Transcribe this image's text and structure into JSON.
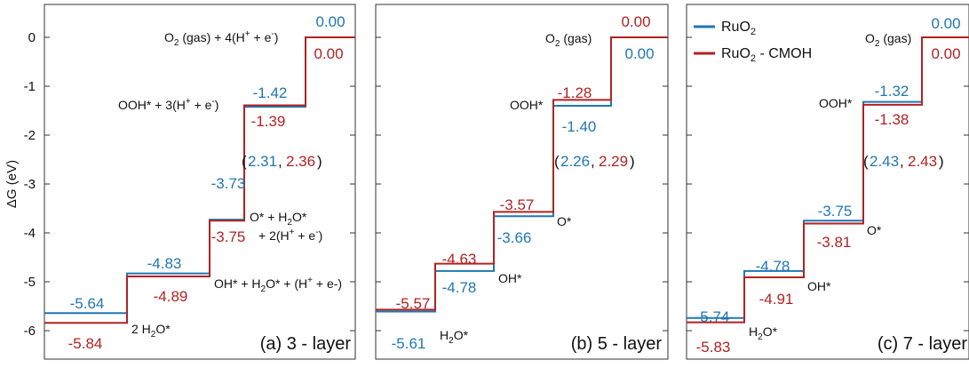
{
  "colors": {
    "ruo2": "#1f77b4",
    "cmoh": "#b22222",
    "axis": "#333333",
    "text": "#111111"
  },
  "chart_data": {
    "type": "line",
    "ylabel": "ΔG (eV)",
    "ylim": [
      -6.2,
      0.3
    ],
    "yticks": [
      "0",
      "-1",
      "-2",
      "-3",
      "-4",
      "-5",
      "-6"
    ],
    "legend": {
      "position": "top-left of panel (c)",
      "entries": [
        "RuO2",
        "RuO2 - CMOH"
      ]
    },
    "panels": [
      {
        "title": "(a) 3 - layer",
        "series": [
          {
            "name": "RuO2",
            "values": [
              -5.64,
              -4.83,
              -3.73,
              -1.42,
              0.0
            ]
          },
          {
            "name": "RuO2 - CMOH",
            "values": [
              -5.84,
              -4.89,
              -3.75,
              -1.39,
              0.0
            ]
          }
        ],
        "blue_labels": [
          "-5.64",
          "-4.83",
          "-3.73",
          "-1.42",
          "0.00"
        ],
        "red_labels": [
          "-5.84",
          "-4.89",
          "-3.75",
          "-1.39",
          "0.00"
        ],
        "species": [
          "2 H2O*",
          "OH* + H2O* + (H⁺ + e-)",
          "O* + H2O* + 2(H⁺ + e⁻)",
          "OOH* + 3(H⁺ + e⁻)",
          "O2 (gas) + 4(H⁺ + e⁻)"
        ],
        "overpotential": [
          "2.31",
          "2.36"
        ]
      },
      {
        "title": "(b) 5 - layer",
        "series": [
          {
            "name": "RuO2",
            "values": [
              -5.61,
              -4.78,
              -3.66,
              -1.4,
              0.0
            ]
          },
          {
            "name": "RuO2 - CMOH",
            "values": [
              -5.57,
              -4.63,
              -3.57,
              -1.28,
              0.0
            ]
          }
        ],
        "blue_labels": [
          "-5.61",
          "-4.78",
          "-3.66",
          "-1.40",
          "0.00"
        ],
        "red_labels": [
          "-5.57",
          "-4.63",
          "-3.57",
          "-1.28",
          "0.00"
        ],
        "species": [
          "H2O*",
          "OH*",
          "O*",
          "OOH*",
          "O2 (gas)"
        ],
        "overpotential": [
          "2.26",
          "2.29"
        ]
      },
      {
        "title": "(c) 7 - layer",
        "series": [
          {
            "name": "RuO2",
            "values": [
              -5.74,
              -4.78,
              -3.75,
              -1.32,
              0.0
            ]
          },
          {
            "name": "RuO2 - CMOH",
            "values": [
              -5.83,
              -4.91,
              -3.81,
              -1.38,
              0.0
            ]
          }
        ],
        "blue_labels": [
          "-5.74",
          "-4.78",
          "-3.75",
          "-1.32",
          "0.00"
        ],
        "red_labels": [
          "-5.83",
          "-4.91",
          "-3.81",
          "-1.38",
          "0.00"
        ],
        "species": [
          "H2O*",
          "OH*",
          "O*",
          "OOH*",
          "O2 (gas)"
        ],
        "overpotential": [
          "2.43",
          "2.43"
        ]
      }
    ]
  }
}
